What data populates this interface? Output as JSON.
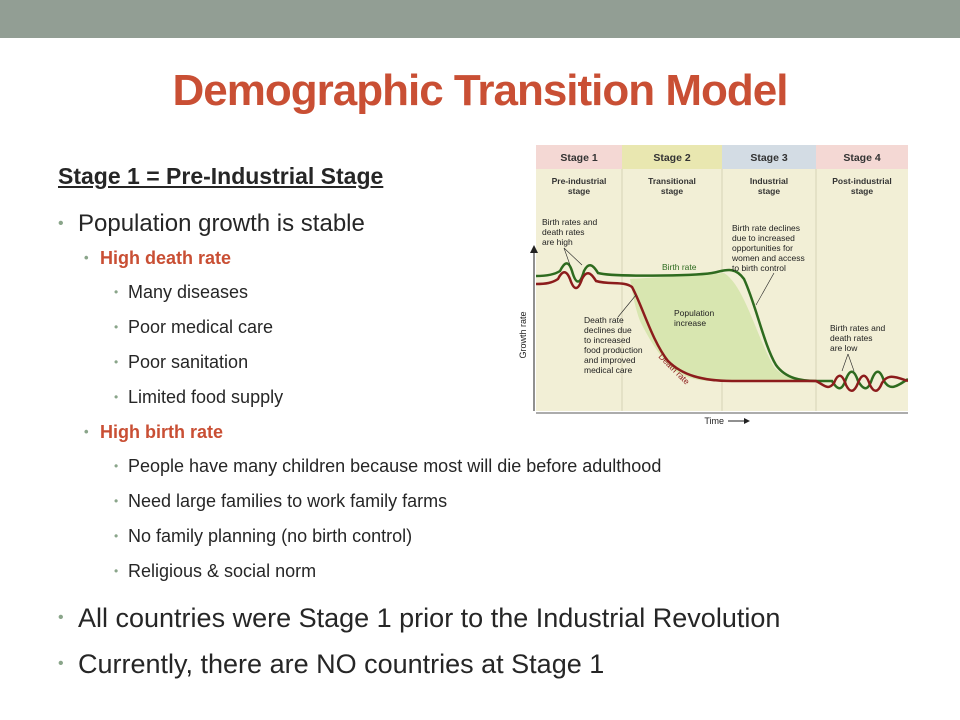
{
  "slide": {
    "title": "Demographic Transition Model",
    "subheading": "Stage 1 = Pre-Industrial Stage",
    "bullets": {
      "growth": "Population growth is stable",
      "death_rate": "High death rate",
      "death_items": [
        "Many diseases",
        "Poor medical care",
        "Poor sanitation",
        "Limited food supply"
      ],
      "birth_rate": "High birth rate",
      "birth_items": [
        "People have many children because most will die before adulthood",
        "Need large families to work family farms",
        "No family planning (no birth control)",
        "Religious & social norm"
      ],
      "industrial": "All countries were Stage 1 prior to the Industrial Revolution",
      "currently": "Currently, there are NO countries at Stage 1"
    }
  },
  "chart_data": {
    "type": "line",
    "stages": [
      {
        "label": "Stage 1",
        "name_lines": [
          "Pre-industrial",
          "stage"
        ],
        "header_color": "#f4d8d4"
      },
      {
        "label": "Stage 2",
        "name_lines": [
          "Transitional",
          "stage"
        ],
        "header_color": "#e9e7b0"
      },
      {
        "label": "Stage 3",
        "name_lines": [
          "Industrial",
          "stage"
        ],
        "header_color": "#d3dce4"
      },
      {
        "label": "Stage 4",
        "name_lines": [
          "Post-industrial",
          "stage"
        ],
        "header_color": "#f4d8d4"
      }
    ],
    "xlabel": "Time",
    "ylabel": "Growth rate",
    "series": [
      {
        "name": "Birth rate",
        "color": "#2e6b1f"
      },
      {
        "name": "Death rate",
        "color": "#8c1c1c"
      }
    ],
    "fill_label_lines": [
      "Population",
      "increase"
    ],
    "fill_color": "#d8e6b0",
    "annotations": {
      "stage1": [
        "Birth rates and",
        "death rates",
        "are high"
      ],
      "stage2": [
        "Death rate",
        "declines due",
        "to increased",
        "food production",
        "and improved",
        "medical care"
      ],
      "stage3": [
        "Birth rate declines",
        "due to increased",
        "opportunities for",
        "women and access",
        "to birth control"
      ],
      "stage4": [
        "Birth rates and",
        "death rates",
        "are low"
      ]
    }
  }
}
